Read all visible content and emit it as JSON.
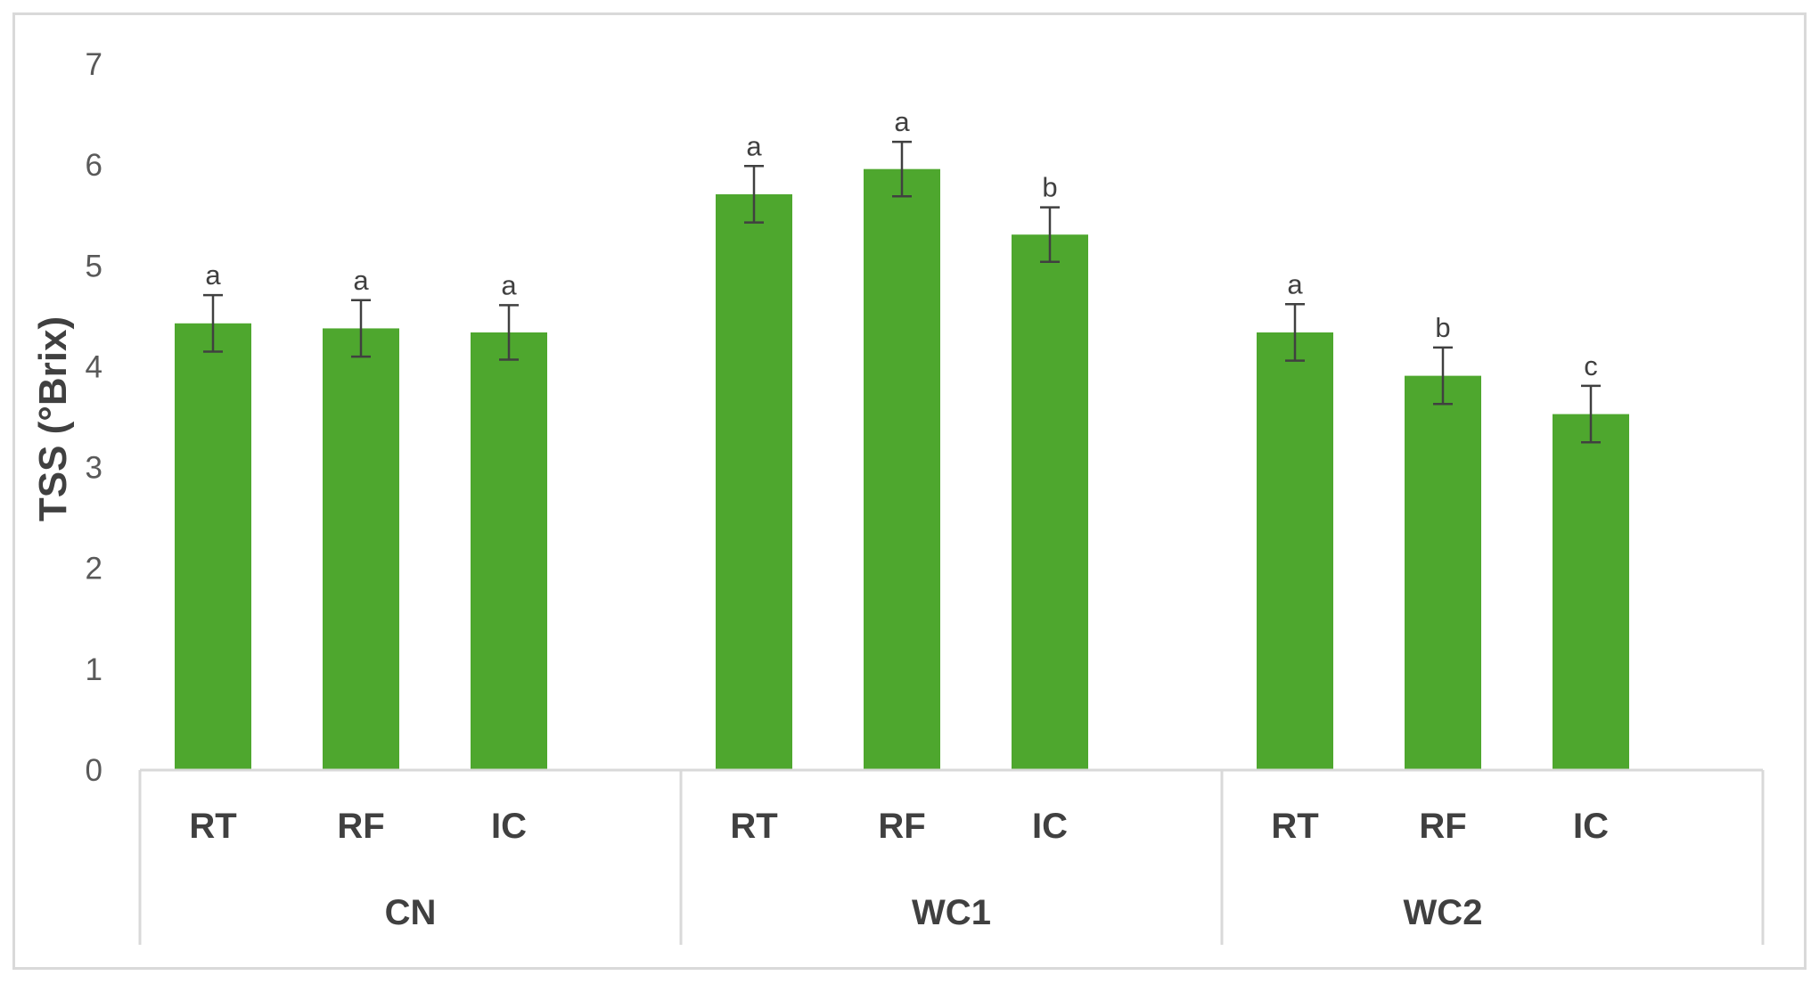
{
  "chart_data": {
    "type": "bar",
    "ylabel": "TSS (°Brix)",
    "ylim": [
      0,
      7
    ],
    "yticks": [
      "0",
      "1",
      "2",
      "3",
      "4",
      "5",
      "6",
      "7"
    ],
    "grid": false,
    "bar_color": "#4ea72e",
    "error_color": "#404040",
    "groups": [
      {
        "name": "CN",
        "bars": [
          {
            "category": "RT",
            "value": 4.43,
            "error": 0.28,
            "sig": "a"
          },
          {
            "category": "RF",
            "value": 4.38,
            "error": 0.28,
            "sig": "a"
          },
          {
            "category": "IC",
            "value": 4.34,
            "error": 0.27,
            "sig": "a"
          }
        ]
      },
      {
        "name": "WC1",
        "bars": [
          {
            "category": "RT",
            "value": 5.71,
            "error": 0.28,
            "sig": "a"
          },
          {
            "category": "RF",
            "value": 5.96,
            "error": 0.27,
            "sig": "a"
          },
          {
            "category": "IC",
            "value": 5.31,
            "error": 0.27,
            "sig": "b"
          }
        ]
      },
      {
        "name": "WC2",
        "bars": [
          {
            "category": "RT",
            "value": 4.34,
            "error": 0.28,
            "sig": "a"
          },
          {
            "category": "RF",
            "value": 3.91,
            "error": 0.28,
            "sig": "b"
          },
          {
            "category": "IC",
            "value": 3.53,
            "error": 0.28,
            "sig": "c"
          }
        ]
      }
    ]
  }
}
